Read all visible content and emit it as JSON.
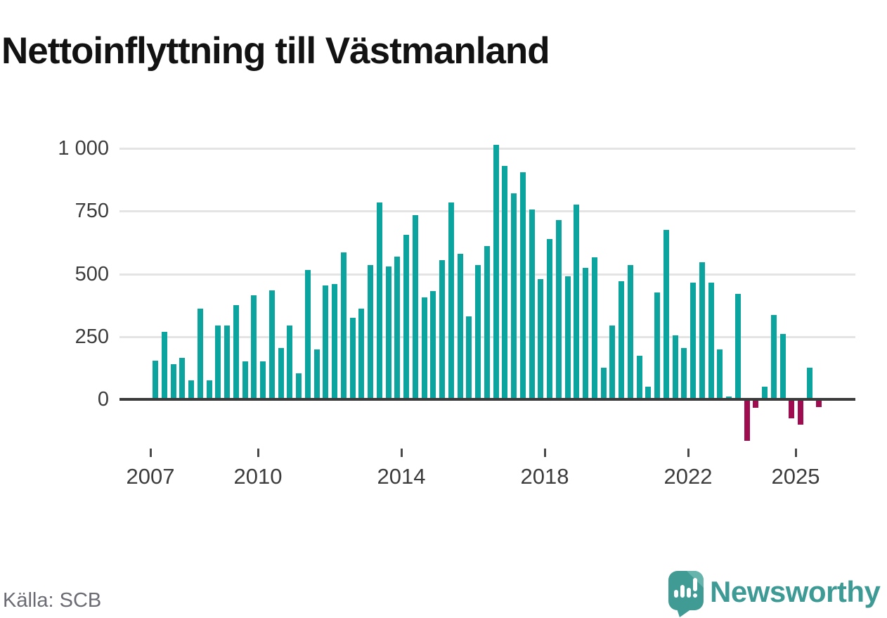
{
  "title": "Nettoinflyttning till Västmanland",
  "source": "Källa: SCB",
  "brand": {
    "name": "Newsworthy",
    "icon": "newsworthy-speech-bubble-bar-chart-icon",
    "text_color": "#3e9a94",
    "bubble_color": "#3f9b94",
    "bubble_light_corner": "#66b4ac"
  },
  "colors": {
    "positive_bar": "#0ca49e",
    "negative_bar": "#a00c50",
    "gridline": "#e4e4e4",
    "zero_line": "#3b3b3b",
    "axis_text": "#3c3c3c"
  },
  "chart_data": {
    "type": "bar",
    "title": "Nettoinflyttning till Västmanland",
    "xlabel": "",
    "ylabel": "",
    "grid": "horizontal",
    "ylim": [
      -200,
      1060
    ],
    "y_ticks": [
      0,
      250,
      500,
      750,
      1000
    ],
    "y_tick_labels": [
      "0",
      "250",
      "500",
      "750",
      "1 000"
    ],
    "x_tick_years": [
      2007,
      2010,
      2014,
      2018,
      2022,
      2025
    ],
    "x": [
      "2007 Q1",
      "2007 Q2",
      "2007 Q3",
      "2007 Q4",
      "2008 Q1",
      "2008 Q2",
      "2008 Q3",
      "2008 Q4",
      "2009 Q1",
      "2009 Q2",
      "2009 Q3",
      "2009 Q4",
      "2010 Q1",
      "2010 Q2",
      "2010 Q3",
      "2010 Q4",
      "2011 Q1",
      "2011 Q2",
      "2011 Q3",
      "2011 Q4",
      "2012 Q1",
      "2012 Q2",
      "2012 Q3",
      "2012 Q4",
      "2013 Q1",
      "2013 Q2",
      "2013 Q3",
      "2013 Q4",
      "2014 Q1",
      "2014 Q2",
      "2014 Q3",
      "2014 Q4",
      "2015 Q1",
      "2015 Q2",
      "2015 Q3",
      "2015 Q4",
      "2016 Q1",
      "2016 Q2",
      "2016 Q3",
      "2016 Q4",
      "2017 Q1",
      "2017 Q2",
      "2017 Q3",
      "2017 Q4",
      "2018 Q1",
      "2018 Q2",
      "2018 Q3",
      "2018 Q4",
      "2019 Q1",
      "2019 Q2",
      "2019 Q3",
      "2019 Q4",
      "2020 Q1",
      "2020 Q2",
      "2020 Q3",
      "2020 Q4",
      "2021 Q1",
      "2021 Q2",
      "2021 Q3",
      "2021 Q4",
      "2022 Q1",
      "2022 Q2",
      "2022 Q3",
      "2022 Q4",
      "2023 Q1",
      "2023 Q2",
      "2023 Q3",
      "2023 Q4",
      "2024 Q1",
      "2024 Q2",
      "2024 Q3",
      "2024 Q4",
      "2025 Q1",
      "2025 Q2",
      "2025 Q3"
    ],
    "values": [
      155,
      270,
      140,
      165,
      75,
      360,
      75,
      295,
      295,
      375,
      150,
      415,
      150,
      435,
      205,
      295,
      105,
      515,
      200,
      455,
      460,
      585,
      325,
      360,
      535,
      785,
      530,
      570,
      655,
      735,
      405,
      430,
      555,
      785,
      580,
      330,
      535,
      610,
      1015,
      930,
      820,
      905,
      755,
      480,
      640,
      715,
      490,
      775,
      525,
      565,
      125,
      295,
      470,
      535,
      175,
      50,
      425,
      675,
      255,
      205,
      465,
      545,
      465,
      200,
      10,
      420,
      -165,
      -35,
      50,
      335,
      260,
      -75,
      -100,
      125,
      -30
    ]
  }
}
